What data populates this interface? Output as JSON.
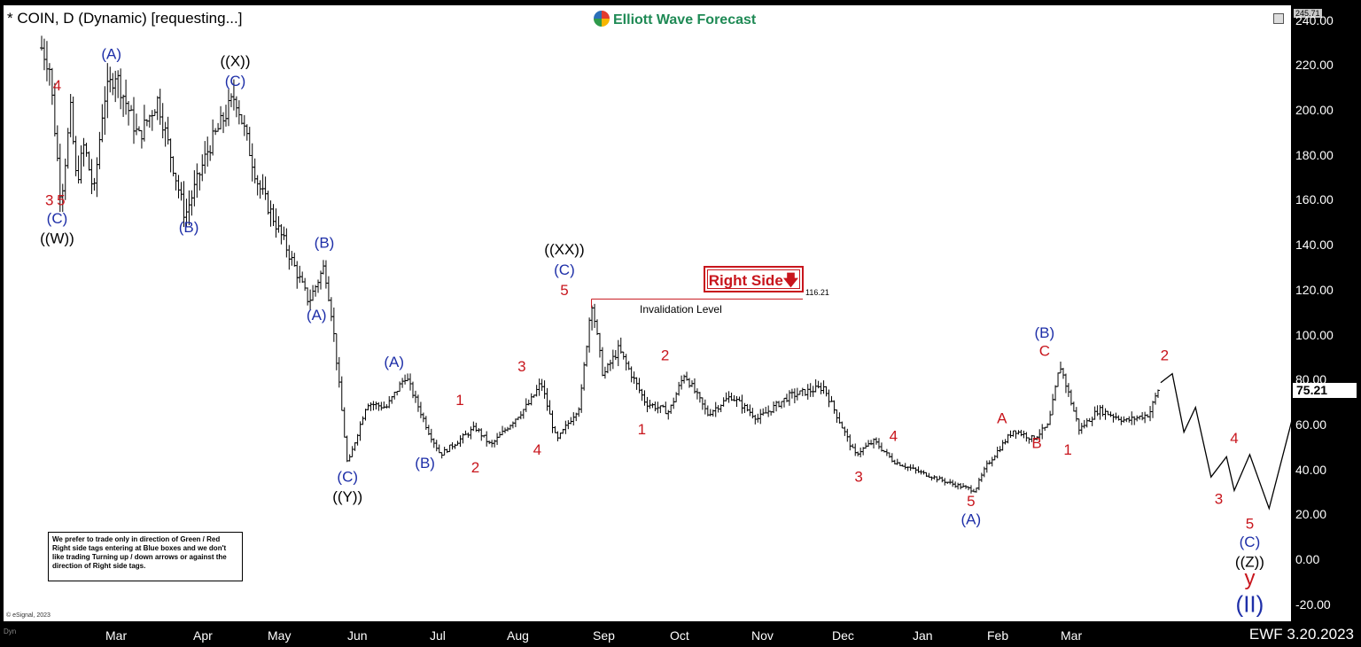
{
  "header": {
    "title": "* COIN, D (Dynamic) [requesting...]",
    "brand": "Elliott Wave Forecast"
  },
  "footer": {
    "date": "EWF 3.20.2023",
    "copyright": "© eSignal, 2023",
    "dyn_label": "Dyn"
  },
  "note": "We prefer to trade only in direction of Green / Red Right side tags entering at Blue boxes and we don't like trading Turning up / down arrows or against the direction of Right side tags.",
  "right_side_tag": {
    "label": "Right Side",
    "color": "#c8161d"
  },
  "invalidation": {
    "label": "Invalidation Level",
    "value": "116.21"
  },
  "price_labels": {
    "last": "75.21",
    "top": "245.71"
  },
  "colors": {
    "red": "#c8161d",
    "blue": "#1e2fa8",
    "black": "#000000",
    "brand": "#1f8a55"
  },
  "chart_data": {
    "type": "ohlc",
    "symbol": "COIN",
    "ylim": [
      -20,
      240
    ],
    "yticks": [
      "240.00",
      "220.00",
      "200.00",
      "180.00",
      "160.00",
      "140.00",
      "120.00",
      "100.00",
      "80.00",
      "60.00",
      "40.00",
      "20.00",
      "0.00",
      "-20.00"
    ],
    "months": [
      "Mar",
      "Apr",
      "May",
      "Jun",
      "Jul",
      "Aug",
      "Sep",
      "Oct",
      "Nov",
      "Dec",
      "Jan",
      "Feb",
      "Mar"
    ],
    "price_path": [
      [
        0,
        228
      ],
      [
        0.2,
        220
      ],
      [
        0.5,
        160
      ],
      [
        0.75,
        200
      ],
      [
        0.9,
        168
      ],
      [
        1.1,
        185
      ],
      [
        1.35,
        163
      ],
      [
        1.6,
        205
      ],
      [
        1.9,
        217
      ],
      [
        2.5,
        188
      ],
      [
        3.0,
        205
      ],
      [
        3.7,
        153
      ],
      [
        4.3,
        183
      ],
      [
        5.0,
        207
      ],
      [
        5.6,
        167
      ],
      [
        6.3,
        140
      ],
      [
        6.9,
        115
      ],
      [
        7.3,
        131
      ],
      [
        7.5,
        108
      ],
      [
        7.9,
        42
      ],
      [
        8.4,
        70
      ],
      [
        8.9,
        68
      ],
      [
        9.4,
        82
      ],
      [
        10.0,
        57
      ],
      [
        10.3,
        47
      ],
      [
        11.2,
        59
      ],
      [
        11.6,
        51
      ],
      [
        12.6,
        70
      ],
      [
        12.9,
        79
      ],
      [
        13.3,
        53
      ],
      [
        13.9,
        69
      ],
      [
        14.2,
        116
      ],
      [
        14.5,
        82
      ],
      [
        14.9,
        94
      ],
      [
        15.6,
        70
      ],
      [
        16.2,
        66
      ],
      [
        16.6,
        83
      ],
      [
        17.2,
        65
      ],
      [
        17.8,
        73
      ],
      [
        18.5,
        63
      ],
      [
        19.3,
        73
      ],
      [
        20.2,
        77
      ],
      [
        21.0,
        47
      ],
      [
        21.5,
        53
      ],
      [
        22.0,
        44
      ],
      [
        22.7,
        39
      ],
      [
        23.5,
        34
      ],
      [
        24.1,
        31
      ],
      [
        24.4,
        42
      ],
      [
        25.1,
        58
      ],
      [
        25.6,
        54
      ],
      [
        26.0,
        60
      ],
      [
        26.3,
        87
      ],
      [
        26.8,
        58
      ],
      [
        27.3,
        67
      ],
      [
        28.0,
        62
      ],
      [
        28.6,
        65
      ],
      [
        28.9,
        79
      ]
    ],
    "projection": [
      [
        28.9,
        79
      ],
      [
        29.2,
        83
      ],
      [
        29.5,
        57
      ],
      [
        29.8,
        68
      ],
      [
        30.2,
        37
      ],
      [
        30.6,
        46
      ],
      [
        30.8,
        31
      ],
      [
        31.2,
        47
      ],
      [
        31.7,
        23
      ],
      [
        32.9,
        103
      ]
    ],
    "invalidation_level": 116.21,
    "wave_labels": [
      {
        "t": "4",
        "x": 0.4,
        "y": 209,
        "c": "red"
      },
      {
        "t": "3",
        "x": 0.2,
        "y": 158,
        "c": "red"
      },
      {
        "t": "5",
        "x": 0.5,
        "y": 158,
        "c": "red"
      },
      {
        "t": "(C)",
        "x": 0.4,
        "y": 150,
        "c": "blue"
      },
      {
        "t": "((W))",
        "x": 0.4,
        "y": 141,
        "c": "black"
      },
      {
        "t": "(A)",
        "x": 1.8,
        "y": 223,
        "c": "blue"
      },
      {
        "t": "(B)",
        "x": 3.8,
        "y": 146,
        "c": "blue"
      },
      {
        "t": "((X))",
        "x": 5.0,
        "y": 220,
        "c": "black"
      },
      {
        "t": "(C)",
        "x": 5.0,
        "y": 211,
        "c": "blue"
      },
      {
        "t": "(B)",
        "x": 7.3,
        "y": 139,
        "c": "blue"
      },
      {
        "t": "(A)",
        "x": 7.1,
        "y": 107,
        "c": "blue"
      },
      {
        "t": "(C)",
        "x": 7.9,
        "y": 35,
        "c": "blue"
      },
      {
        "t": "((Y))",
        "x": 7.9,
        "y": 26,
        "c": "black"
      },
      {
        "t": "(A)",
        "x": 9.1,
        "y": 86,
        "c": "blue"
      },
      {
        "t": "(B)",
        "x": 9.9,
        "y": 41,
        "c": "blue"
      },
      {
        "t": "1",
        "x": 10.8,
        "y": 69,
        "c": "red"
      },
      {
        "t": "2",
        "x": 11.2,
        "y": 39,
        "c": "red"
      },
      {
        "t": "3",
        "x": 12.4,
        "y": 84,
        "c": "red"
      },
      {
        "t": "4",
        "x": 12.8,
        "y": 47,
        "c": "red"
      },
      {
        "t": "((XX))",
        "x": 13.5,
        "y": 136,
        "c": "black"
      },
      {
        "t": "(C)",
        "x": 13.5,
        "y": 127,
        "c": "blue"
      },
      {
        "t": "5",
        "x": 13.5,
        "y": 118,
        "c": "red"
      },
      {
        "t": "2",
        "x": 16.1,
        "y": 89,
        "c": "red"
      },
      {
        "t": "1",
        "x": 15.5,
        "y": 56,
        "c": "red"
      },
      {
        "t": "4",
        "x": 22.0,
        "y": 53,
        "c": "red"
      },
      {
        "t": "3",
        "x": 21.1,
        "y": 35,
        "c": "red"
      },
      {
        "t": "5",
        "x": 24.0,
        "y": 24,
        "c": "red"
      },
      {
        "t": "(A)",
        "x": 24.0,
        "y": 16,
        "c": "blue"
      },
      {
        "t": "A",
        "x": 24.8,
        "y": 61,
        "c": "red"
      },
      {
        "t": "B",
        "x": 25.7,
        "y": 50,
        "c": "red"
      },
      {
        "t": "(B)",
        "x": 25.9,
        "y": 99,
        "c": "blue"
      },
      {
        "t": "C",
        "x": 25.9,
        "y": 91,
        "c": "red"
      },
      {
        "t": "1",
        "x": 26.5,
        "y": 47,
        "c": "red"
      },
      {
        "t": "2",
        "x": 29.0,
        "y": 89,
        "c": "red"
      },
      {
        "t": "4",
        "x": 30.8,
        "y": 52,
        "c": "red"
      },
      {
        "t": "3",
        "x": 30.4,
        "y": 25,
        "c": "red"
      },
      {
        "t": "5",
        "x": 31.2,
        "y": 14,
        "c": "red"
      },
      {
        "t": "(C)",
        "x": 31.2,
        "y": 6,
        "c": "blue"
      },
      {
        "t": "((Z))",
        "x": 31.2,
        "y": -3,
        "c": "black"
      },
      {
        "t": "y",
        "x": 31.2,
        "y": -11,
        "c": "red"
      },
      {
        "t": "(II)",
        "x": 31.2,
        "y": -23,
        "c": "blue"
      }
    ]
  }
}
